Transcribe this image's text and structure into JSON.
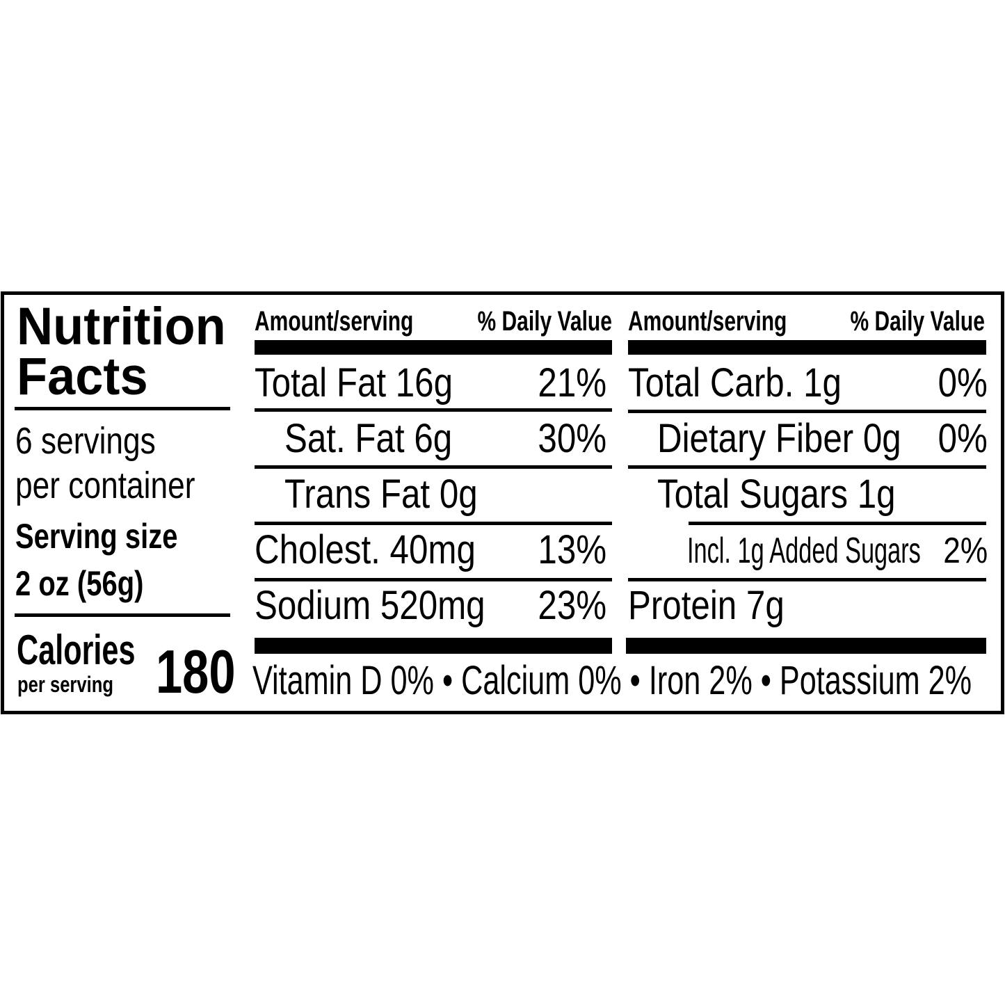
{
  "title_line1": "Nutrition",
  "title_line2": "Facts",
  "servings_line1": "6 servings",
  "servings_line2": "per container",
  "serving_size_label": "Serving size",
  "serving_size_value": "2 oz (56g)",
  "calories_label": "Calories",
  "calories_sub": "per serving",
  "calories_value": "180",
  "headers": {
    "amount": "Amount/serving",
    "dv": "% Daily Value"
  },
  "left_rows": [
    {
      "label": "Total Fat 16g",
      "dv": "21%"
    },
    {
      "label": "Sat. Fat 6g",
      "dv": "30%"
    },
    {
      "label": "Trans Fat 0g",
      "dv": ""
    },
    {
      "label": "Cholest. 40mg",
      "dv": "13%"
    },
    {
      "label": "Sodium 520mg",
      "dv": "23%"
    }
  ],
  "right_rows": [
    {
      "label": "Total Carb. 1g",
      "dv": "0%"
    },
    {
      "label": "Dietary Fiber 0g",
      "dv": "0%"
    },
    {
      "label": "Total Sugars 1g",
      "dv": ""
    },
    {
      "label": "Incl. 1g Added Sugars",
      "dv": "2%"
    },
    {
      "label": "Protein 7g",
      "dv": ""
    }
  ],
  "micronutrients": [
    "Vitamin D 0%",
    "Calcium 0%",
    "Iron 2%",
    "Potassium 2%"
  ],
  "separator": "•"
}
